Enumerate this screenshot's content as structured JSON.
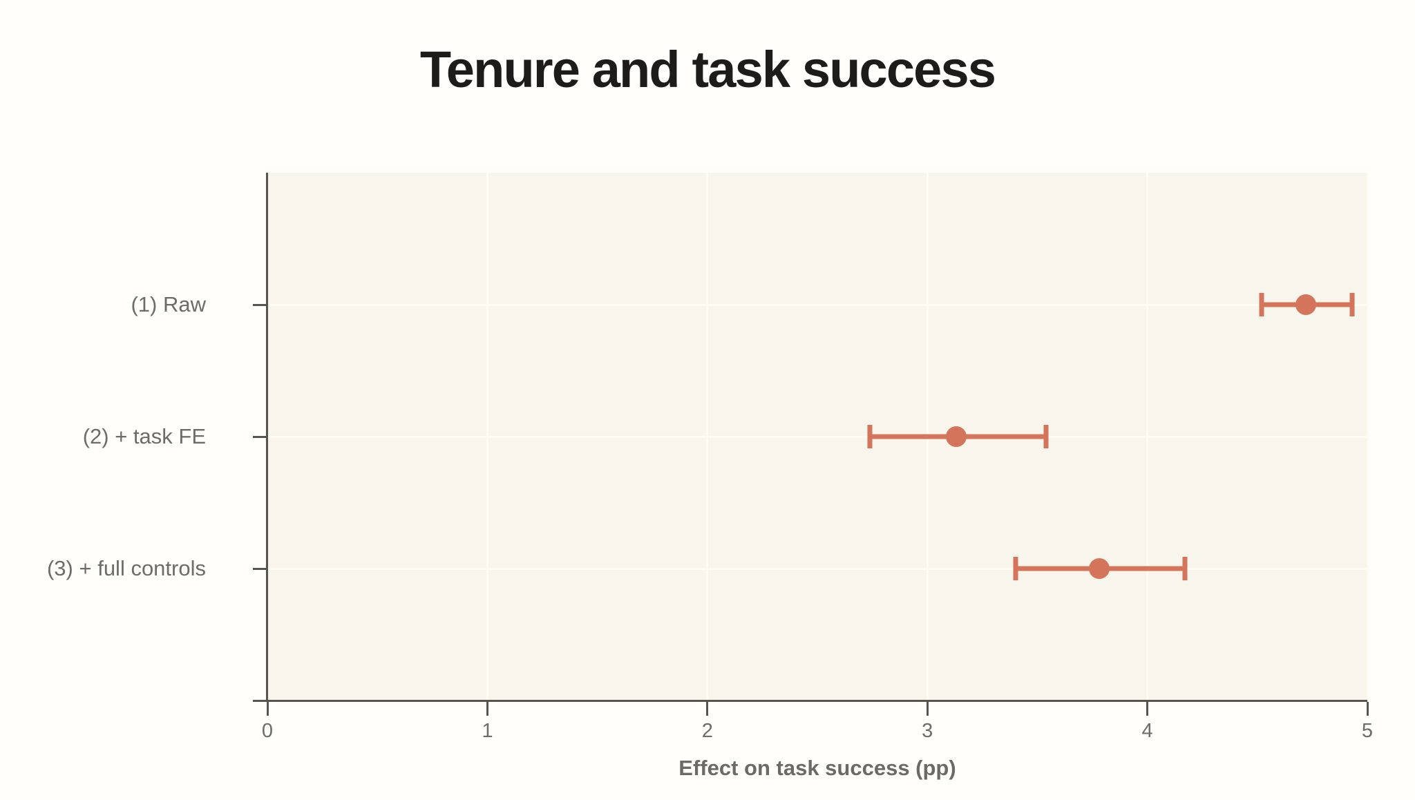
{
  "chart_data": {
    "type": "scatter",
    "subtype": "coefficient-plot-with-error-bars",
    "title": "Tenure and task success",
    "xlabel": "Effect on task success (pp)",
    "ylabel": "",
    "xlim": [
      0,
      5
    ],
    "xticks": [
      "0",
      "1",
      "2",
      "3",
      "4",
      "5"
    ],
    "grid": true,
    "legend": "none",
    "categories": [
      "(1) Raw",
      "(2) + task FE",
      "(3) + full controls"
    ],
    "series": [
      {
        "name": "estimate",
        "values": [
          4.72,
          3.13,
          3.78
        ],
        "ci_low": [
          4.52,
          2.74,
          3.4
        ],
        "ci_high": [
          4.93,
          3.54,
          4.17
        ]
      }
    ],
    "colors": {
      "marker": "#d4755b",
      "axis": "#56554d",
      "tick_label": "#6d6c66",
      "category_label": "#6d6c66",
      "title": "#1d1c1a",
      "axis_label": "#6b6a64",
      "plot_background": "#f7f5ec",
      "page_background": "#fffefb",
      "gridline": "#fdfbf2"
    }
  }
}
